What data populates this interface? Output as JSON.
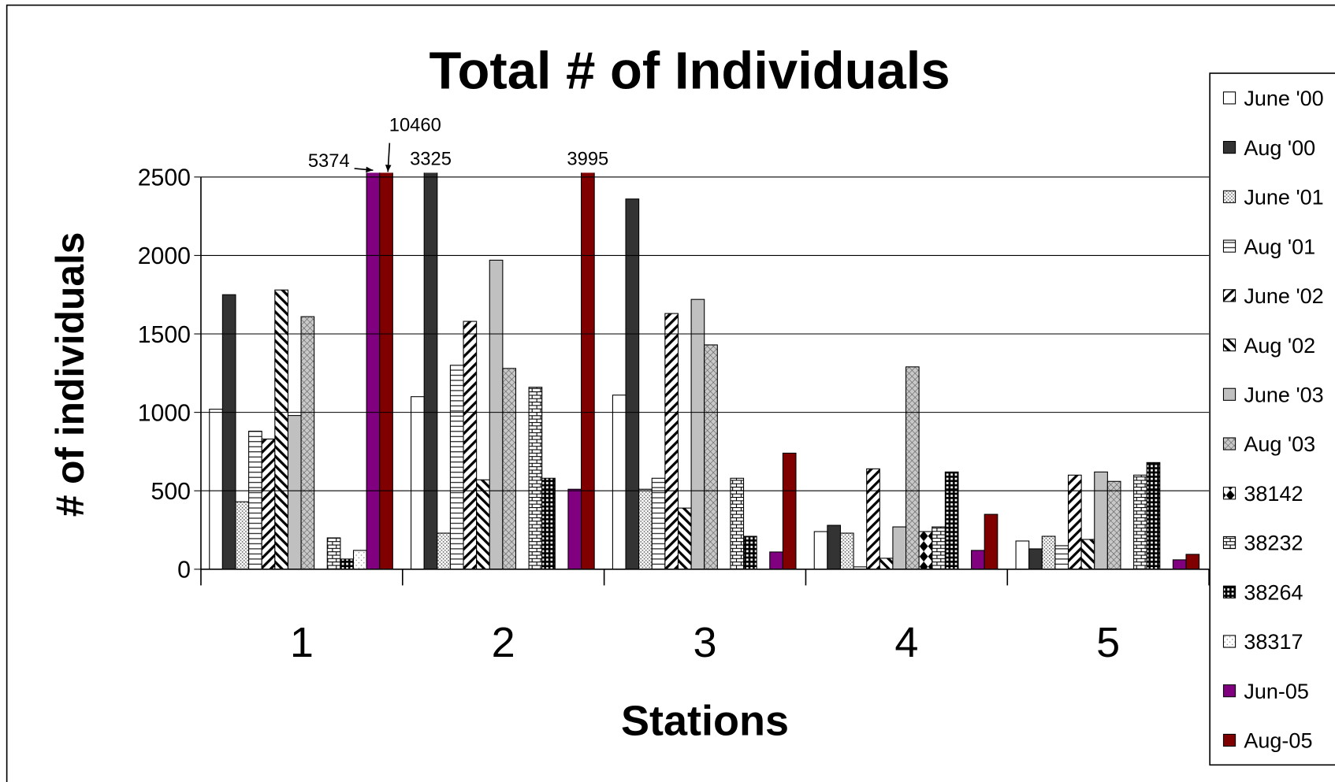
{
  "chart_data": {
    "type": "bar",
    "title": "Total # of Individuals",
    "x_label": "Stations",
    "y_label": "# of individuals",
    "categories": [
      "1",
      "2",
      "3",
      "4",
      "5"
    ],
    "ylim": [
      0,
      2500
    ],
    "yticks": [
      0,
      500,
      1000,
      1500,
      2000,
      2500
    ],
    "grid": true,
    "legend": "right",
    "series": [
      {
        "name": "June '00",
        "color": "#ffffff",
        "values": [
          1020,
          1100,
          1110,
          240,
          180
        ]
      },
      {
        "name": "Aug '00",
        "color": "#333333",
        "values": [
          1750,
          3325,
          2360,
          280,
          130
        ],
        "value_labels": [
          null,
          "3325",
          null,
          null,
          null
        ]
      },
      {
        "name": "June '01",
        "color": "#ffffff",
        "pattern": "dots",
        "values": [
          430,
          230,
          510,
          230,
          210
        ]
      },
      {
        "name": "Aug '01",
        "color": "#ffffff",
        "pattern": "hlines",
        "values": [
          880,
          1300,
          580,
          15,
          150
        ]
      },
      {
        "name": "June '02",
        "color": "#ffffff",
        "pattern": "diag",
        "values": [
          830,
          1580,
          1630,
          640,
          600
        ]
      },
      {
        "name": "Aug '02",
        "color": "#ffffff",
        "pattern": "bdiag",
        "values": [
          1780,
          570,
          390,
          70,
          190
        ]
      },
      {
        "name": "June '03",
        "color": "#c0c0c0",
        "values": [
          980,
          1970,
          1720,
          270,
          620
        ]
      },
      {
        "name": "Aug '03",
        "color": "#c0c0c0",
        "pattern": "cross",
        "values": [
          1610,
          1280,
          1430,
          1290,
          560
        ]
      },
      {
        "name": "38142",
        "color": "#ffffff",
        "pattern": "diamond",
        "values": [
          0,
          0,
          0,
          240,
          0
        ]
      },
      {
        "name": "38232",
        "color": "#ffffff",
        "pattern": "brick",
        "values": [
          200,
          1160,
          580,
          270,
          600
        ]
      },
      {
        "name": "38264",
        "color": "#000000",
        "pattern": "grid",
        "values": [
          65,
          580,
          210,
          620,
          680
        ]
      },
      {
        "name": "38317",
        "color": "#ffffff",
        "pattern": "sparse",
        "values": [
          120,
          0,
          0,
          0,
          0
        ]
      },
      {
        "name": "Jun-05",
        "color": "#800080",
        "values": [
          5374,
          510,
          110,
          120,
          60
        ],
        "value_labels": [
          "5374",
          null,
          null,
          null,
          null
        ]
      },
      {
        "name": "Aug-05",
        "color": "#800000",
        "values": [
          10460,
          3995,
          740,
          350,
          95
        ],
        "value_labels": [
          "10460",
          "3995",
          null,
          null,
          null
        ]
      }
    ]
  }
}
